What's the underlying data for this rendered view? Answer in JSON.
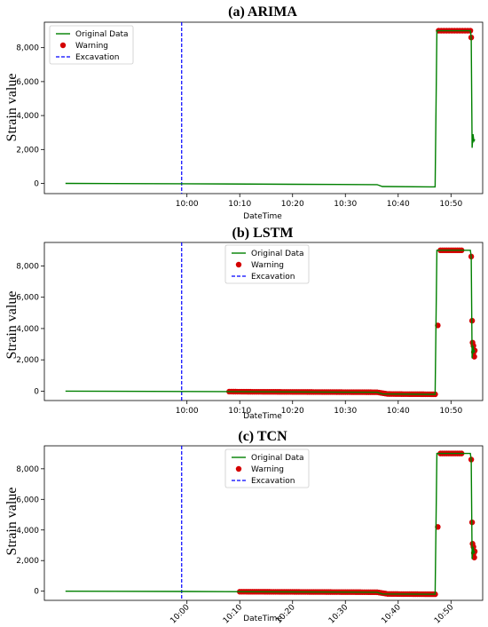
{
  "colors": {
    "data_line": "#008000",
    "warning": "#d40000",
    "excavation": "#0000ff",
    "axes": "#000000"
  },
  "legend_labels": {
    "data": "Original Data",
    "warning": "Warning",
    "excavation": "Excavation"
  },
  "chart_data": [
    {
      "type": "line",
      "title": "(a) ARIMA",
      "xlabel": "DateTime",
      "ylabel": "Strain value",
      "legend_position": "top-left",
      "xlim": [
        "09:33",
        "10:56"
      ],
      "ylim": [
        -600,
        9500
      ],
      "xticks": [
        "10:00",
        "10:10",
        "10:20",
        "10:30",
        "10:40",
        "10:50"
      ],
      "yticks": [
        0,
        2000,
        4000,
        6000,
        8000
      ],
      "ytick_labels": [
        "0",
        "2,000",
        "4,000",
        "6,000",
        "8,000"
      ],
      "excavation_x": "09:59",
      "series": [
        {
          "name": "Original Data",
          "x": [
            "09:37",
            "10:00",
            "10:20",
            "10:36",
            "10:37",
            "10:46",
            "10:47",
            "10:47:20",
            "10:47:40",
            "10:53:40",
            "10:53:50",
            "10:54:00",
            "10:54:10",
            "10:54:20",
            "10:54:30"
          ],
          "y": [
            0,
            -20,
            -50,
            -70,
            -180,
            -200,
            -200,
            9000,
            9000,
            9000,
            8600,
            2100,
            2900,
            2500,
            2600
          ]
        },
        {
          "name": "Warning",
          "x": [
            "10:47:40",
            "10:48:40",
            "10:49:40",
            "10:50:40",
            "10:51:40",
            "10:52:40",
            "10:53:40",
            "10:53:50"
          ],
          "y": [
            9000,
            9000,
            9000,
            9000,
            9000,
            9000,
            9000,
            8600
          ]
        }
      ]
    },
    {
      "type": "line",
      "title": "(b) LSTM",
      "xlabel": "DateTime",
      "ylabel": "Strain value",
      "legend_position": "top-center",
      "xlim": [
        "09:33",
        "10:56"
      ],
      "ylim": [
        -600,
        9500
      ],
      "xticks": [
        "10:00",
        "10:10",
        "10:20",
        "10:30",
        "10:40",
        "10:50"
      ],
      "yticks": [
        0,
        2000,
        4000,
        6000,
        8000
      ],
      "ytick_labels": [
        "0",
        "2,000",
        "4,000",
        "6,000",
        "8,000"
      ],
      "excavation_x": "09:59",
      "series": [
        {
          "name": "Original Data",
          "x": [
            "09:37",
            "10:00",
            "10:20",
            "10:36",
            "10:37",
            "10:46",
            "10:47",
            "10:47:20",
            "10:47:40",
            "10:53:40",
            "10:53:50",
            "10:54:00",
            "10:54:10",
            "10:54:20",
            "10:54:30"
          ],
          "y": [
            0,
            -20,
            -50,
            -70,
            -180,
            -200,
            -200,
            9000,
            9000,
            9000,
            8600,
            2100,
            2900,
            2500,
            2600
          ]
        },
        {
          "name": "Warning",
          "x": [
            "10:08",
            "10:12",
            "10:16",
            "10:20",
            "10:24",
            "10:28",
            "10:32",
            "10:36",
            "10:38",
            "10:41",
            "10:44",
            "10:47",
            "10:47:30",
            "10:48",
            "10:50",
            "10:52",
            "10:53:50",
            "10:54",
            "10:54:05",
            "10:54:15",
            "10:54:20",
            "10:54:25",
            "10:54:30"
          ],
          "y": [
            -30,
            -40,
            -45,
            -50,
            -55,
            -60,
            -65,
            -70,
            -180,
            -190,
            -195,
            -200,
            4200,
            9000,
            9000,
            9000,
            8600,
            4500,
            3100,
            2900,
            2500,
            2200,
            2600
          ]
        }
      ]
    },
    {
      "type": "line",
      "title": "(c) TCN",
      "xlabel": "DateTime",
      "ylabel": "Strain value",
      "legend_position": "top-center",
      "xlim": [
        "09:33",
        "10:56"
      ],
      "ylim": [
        -600,
        9500
      ],
      "xticks": [
        "10:00",
        "10:10",
        "10:20",
        "10:30",
        "10:40",
        "10:50"
      ],
      "yticks": [
        0,
        2000,
        4000,
        6000,
        8000
      ],
      "ytick_labels": [
        "0",
        "2,000",
        "4,000",
        "6,000",
        "8,000"
      ],
      "excavation_x": "09:59",
      "series": [
        {
          "name": "Original Data",
          "x": [
            "09:37",
            "10:00",
            "10:20",
            "10:36",
            "10:37",
            "10:46",
            "10:47",
            "10:47:20",
            "10:47:40",
            "10:53:40",
            "10:53:50",
            "10:54:00",
            "10:54:10",
            "10:54:20",
            "10:54:30"
          ],
          "y": [
            0,
            -20,
            -50,
            -70,
            -180,
            -200,
            -200,
            9000,
            9000,
            9000,
            8600,
            2100,
            2900,
            2500,
            2600
          ]
        },
        {
          "name": "Warning",
          "x": [
            "10:10",
            "10:14",
            "10:18",
            "10:22",
            "10:26",
            "10:30",
            "10:34",
            "10:36",
            "10:38",
            "10:41",
            "10:44",
            "10:47",
            "10:47:30",
            "10:48",
            "10:50",
            "10:52",
            "10:53:50",
            "10:54",
            "10:54:05",
            "10:54:15",
            "10:54:20",
            "10:54:25",
            "10:54:30"
          ],
          "y": [
            -35,
            -40,
            -45,
            -50,
            -55,
            -60,
            -65,
            -70,
            -180,
            -190,
            -195,
            -200,
            4200,
            9000,
            9000,
            9000,
            8600,
            4500,
            3100,
            2900,
            2500,
            2200,
            2600
          ]
        }
      ]
    }
  ]
}
